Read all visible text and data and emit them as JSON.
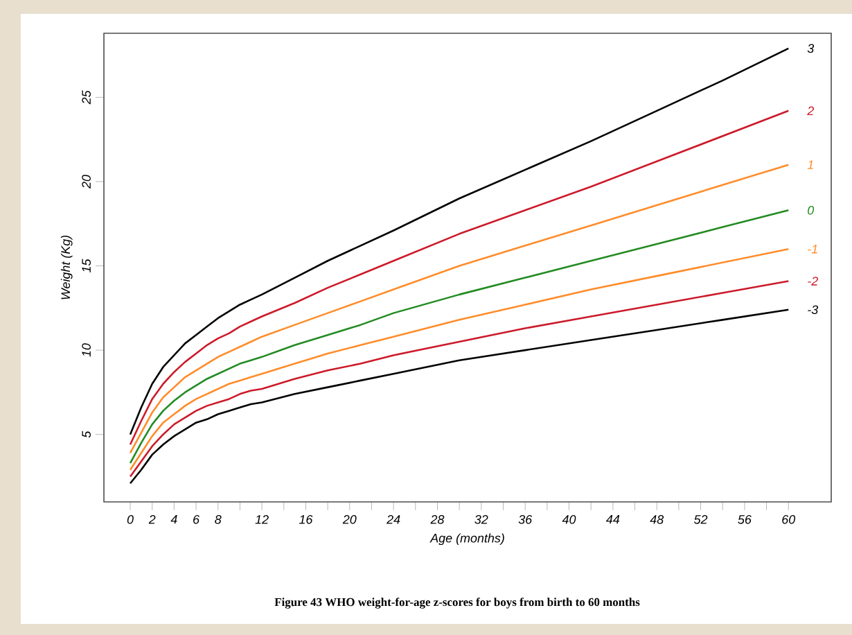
{
  "chart_data": {
    "type": "line",
    "xlabel": "Age (months)",
    "ylabel": "Weight (Kg)",
    "annotations": [
      "**Figure 43**    **WHO weight-for-age z-scores for boys from birth to 60 months**"
    ],
    "x": [
      0,
      1,
      2,
      3,
      4,
      5,
      6,
      7,
      8,
      9,
      10,
      11,
      12,
      15,
      18,
      21,
      24,
      30,
      36,
      42,
      48,
      54,
      60
    ],
    "xlim": [
      -2.4,
      63.9
    ],
    "ylim": [
      1,
      28.8
    ],
    "xticks": [
      0,
      2,
      4,
      6,
      8,
      {
        "value": 10,
        "label": null
      },
      12,
      {
        "value": 14,
        "label": null
      },
      16,
      {
        "value": 18,
        "label": null
      },
      20,
      {
        "value": 22,
        "label": null
      },
      24,
      {
        "value": 26,
        "label": null
      },
      28,
      {
        "value": 30,
        "label": null
      },
      32,
      {
        "value": 34,
        "label": null
      },
      36,
      {
        "value": 38,
        "label": null
      },
      40,
      {
        "value": 42,
        "label": null
      },
      44,
      {
        "value": 46,
        "label": null
      },
      48,
      {
        "value": 50,
        "label": null
      },
      52,
      {
        "value": 54,
        "label": null
      },
      56,
      {
        "value": 58,
        "label": null
      },
      60
    ],
    "yticks": [
      5,
      10,
      15,
      20,
      25
    ],
    "series": [
      {
        "name": "3",
        "color": "#000000",
        "values": [
          5.0,
          6.6,
          8.0,
          9.0,
          9.7,
          10.4,
          10.9,
          11.4,
          11.9,
          12.3,
          12.7,
          13.0,
          13.3,
          14.3,
          15.3,
          16.2,
          17.1,
          19.0,
          20.7,
          22.4,
          24.2,
          26.0,
          27.9
        ]
      },
      {
        "name": "2",
        "color": "#cc1a2a",
        "values": [
          4.4,
          5.8,
          7.1,
          8.0,
          8.7,
          9.3,
          9.8,
          10.3,
          10.7,
          11.0,
          11.4,
          11.7,
          12.0,
          12.8,
          13.7,
          14.5,
          15.3,
          16.9,
          18.3,
          19.7,
          21.2,
          22.7,
          24.2
        ]
      },
      {
        "name": "1",
        "color": "#ff8c2a",
        "values": [
          3.9,
          5.1,
          6.3,
          7.2,
          7.8,
          8.4,
          8.8,
          9.2,
          9.6,
          9.9,
          10.2,
          10.5,
          10.8,
          11.5,
          12.2,
          12.9,
          13.6,
          15.0,
          16.2,
          17.4,
          18.6,
          19.8,
          21.0
        ]
      },
      {
        "name": "0",
        "color": "#228b22",
        "values": [
          3.3,
          4.5,
          5.6,
          6.4,
          7.0,
          7.5,
          7.9,
          8.3,
          8.6,
          8.9,
          9.2,
          9.4,
          9.6,
          10.3,
          10.9,
          11.5,
          12.2,
          13.3,
          14.3,
          15.3,
          16.3,
          17.3,
          18.3
        ]
      },
      {
        "name": "-1",
        "color": "#ff8c2a",
        "values": [
          2.9,
          3.9,
          4.9,
          5.7,
          6.2,
          6.7,
          7.1,
          7.4,
          7.7,
          8.0,
          8.2,
          8.4,
          8.6,
          9.2,
          9.8,
          10.3,
          10.8,
          11.8,
          12.7,
          13.6,
          14.4,
          15.2,
          16.0
        ]
      },
      {
        "name": "-2",
        "color": "#cc1a2a",
        "values": [
          2.5,
          3.4,
          4.3,
          5.0,
          5.6,
          6.0,
          6.4,
          6.7,
          6.9,
          7.1,
          7.4,
          7.6,
          7.7,
          8.3,
          8.8,
          9.2,
          9.7,
          10.5,
          11.3,
          12.0,
          12.7,
          13.4,
          14.1
        ]
      },
      {
        "name": "-3",
        "color": "#000000",
        "values": [
          2.1,
          2.9,
          3.8,
          4.4,
          4.9,
          5.3,
          5.7,
          5.9,
          6.2,
          6.4,
          6.6,
          6.8,
          6.9,
          7.4,
          7.8,
          8.2,
          8.6,
          9.4,
          10.0,
          10.6,
          11.2,
          11.8,
          12.4
        ]
      }
    ]
  }
}
